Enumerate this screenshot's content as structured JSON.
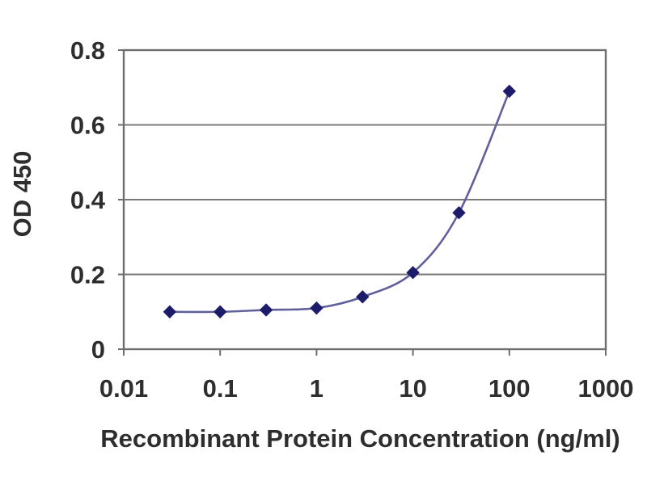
{
  "figure": {
    "background": "#ffffff"
  },
  "chart_data": {
    "type": "line",
    "title": "",
    "xlabel": "Recombinant Protein Concentration (ng/ml)",
    "ylabel": "OD 450",
    "x_scale": "log",
    "xlim": [
      0.01,
      1000
    ],
    "ylim": [
      0,
      0.8
    ],
    "x_ticks": [
      0.01,
      0.1,
      1,
      10,
      100,
      1000
    ],
    "x_tick_labels": [
      "0.01",
      "0.1",
      "1",
      "10",
      "100",
      "1000"
    ],
    "y_ticks": [
      0,
      0.2,
      0.4,
      0.6,
      0.8
    ],
    "y_tick_labels": [
      "0",
      "0.2",
      "0.4",
      "0.6",
      "0.8"
    ],
    "grid": "horizontal",
    "legend": "none",
    "series": [
      {
        "name": "OD 450",
        "x": [
          0.03,
          0.1,
          0.3,
          1,
          3,
          10,
          30,
          100
        ],
        "values": [
          0.1,
          0.1,
          0.105,
          0.11,
          0.14,
          0.205,
          0.365,
          0.69
        ],
        "marker": "diamond",
        "smooth": true
      }
    ],
    "colors": {
      "line": "#60609c",
      "marker": "#1c1c6b",
      "grid": "#7a7a7a",
      "axis": "#6e6e6e",
      "text": "#2e2e2e",
      "background": "#ffffff"
    }
  }
}
